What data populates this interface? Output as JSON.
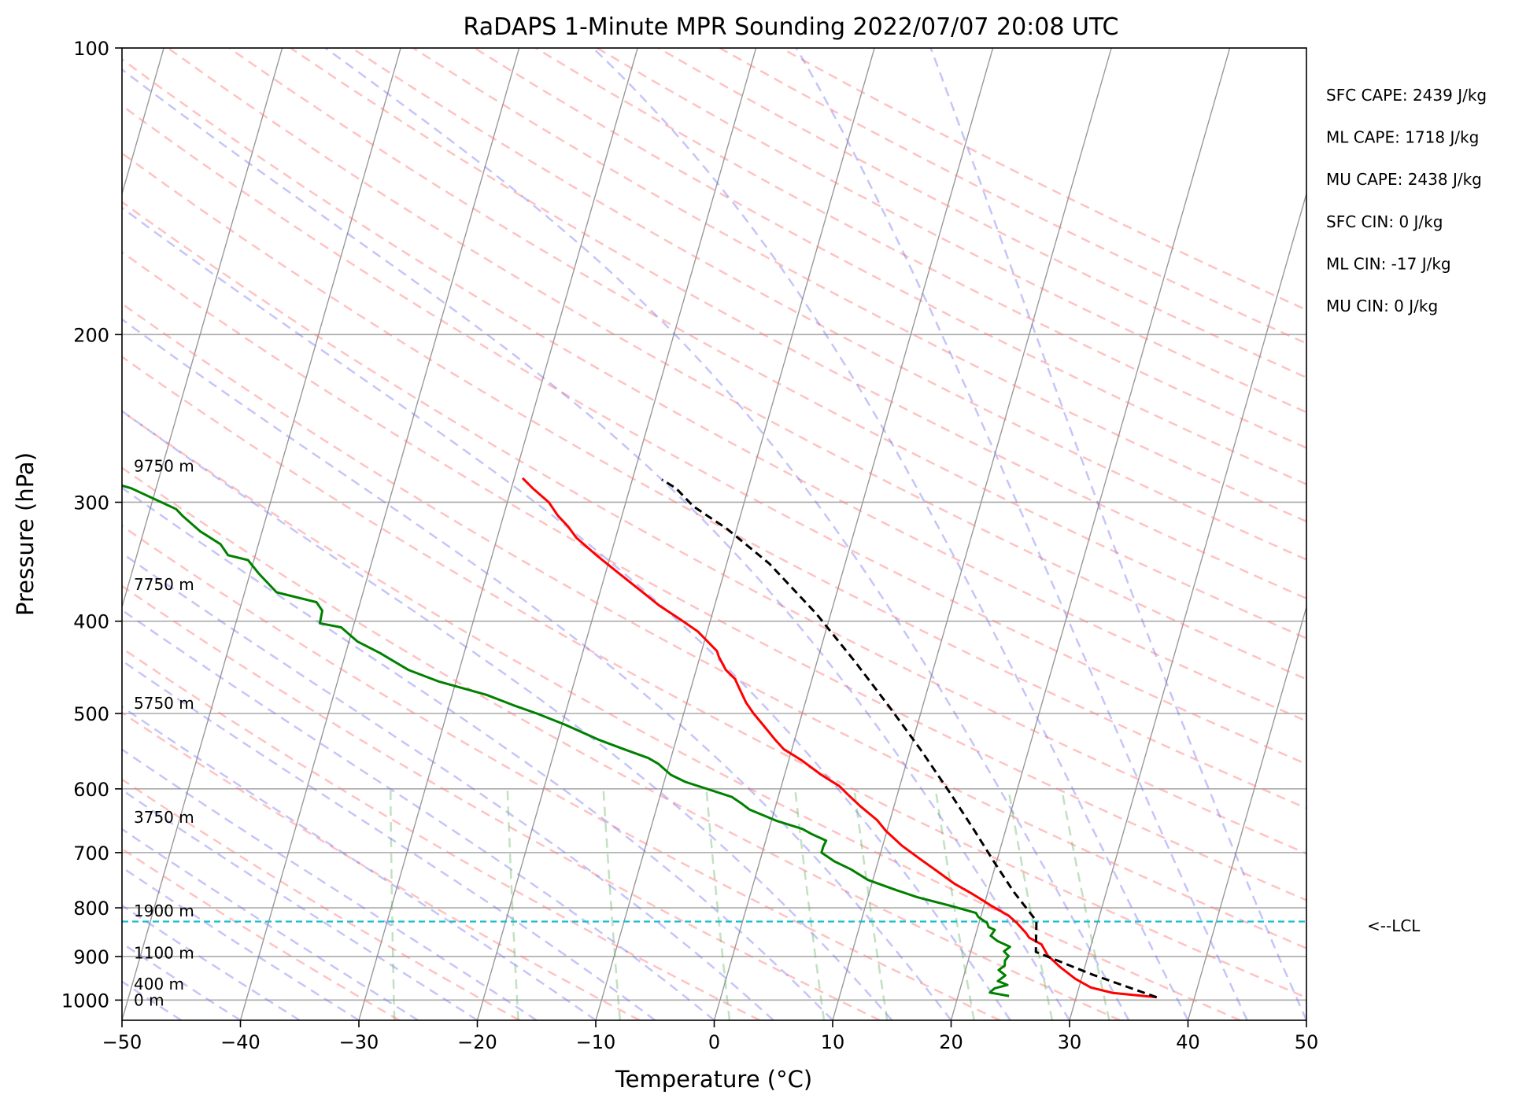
{
  "chart_data": {
    "type": "skew-t",
    "title": "RaDAPS 1-Minute MPR Sounding 2022/07/07 20:08 UTC",
    "xlabel": "Temperature (°C)",
    "ylabel": "Pressure (hPa)",
    "xlim": [
      -50,
      50
    ],
    "ylim": [
      1050,
      100
    ],
    "y_scale": "log",
    "grid": true,
    "x_ticks": [
      "−50",
      "−40",
      "−30",
      "−20",
      "−10",
      "0",
      "10",
      "20",
      "30",
      "40",
      "50"
    ],
    "y_ticks": [
      "100",
      "200",
      "300",
      "400",
      "500",
      "600",
      "700",
      "800",
      "900",
      "1000"
    ],
    "stats": [
      "SFC CAPE: 2439 J/kg",
      "ML CAPE: 1718 J/kg",
      "MU CAPE: 2438 J/kg",
      "SFC CIN: 0 J/kg",
      "ML CIN: -17 J/kg",
      "MU CIN: 0 J/kg"
    ],
    "height_labels": [
      {
        "text": "9750 m",
        "p": 275
      },
      {
        "text": "7750 m",
        "p": 366
      },
      {
        "text": "5750 m",
        "p": 488
      },
      {
        "text": "3750 m",
        "p": 643
      },
      {
        "text": "1900 m",
        "p": 806
      },
      {
        "text": "1100 m",
        "p": 892
      },
      {
        "text": "400 m",
        "p": 962
      },
      {
        "text": "0 m",
        "p": 1000
      }
    ],
    "lcl": {
      "p": 827,
      "label": "<--LCL"
    },
    "series": [
      {
        "color": "#ff0000",
        "points": [
          [
            36.8,
            993
          ],
          [
            33,
            983
          ],
          [
            31,
            970
          ],
          [
            29.5,
            950
          ],
          [
            27.9,
            923
          ],
          [
            26.6,
            898
          ],
          [
            25.8,
            874
          ],
          [
            24.6,
            860
          ],
          [
            24.2,
            850
          ],
          [
            23.2,
            830
          ],
          [
            22.3,
            815
          ],
          [
            20.7,
            797
          ],
          [
            19.8,
            786
          ],
          [
            18.6,
            772
          ],
          [
            17,
            755
          ],
          [
            15.2,
            732
          ],
          [
            13.4,
            710
          ],
          [
            11.6,
            688
          ],
          [
            9.9,
            664
          ],
          [
            8.9,
            647
          ],
          [
            7.1,
            625
          ],
          [
            5.8,
            608
          ],
          [
            4.9,
            596
          ],
          [
            3.1,
            580
          ],
          [
            1.1,
            560
          ],
          [
            -0.7,
            545
          ],
          [
            -1.7,
            532
          ],
          [
            -3.1,
            513
          ],
          [
            -4.1,
            500
          ],
          [
            -5,
            487
          ],
          [
            -6,
            469
          ],
          [
            -6.5,
            460
          ],
          [
            -7.5,
            450
          ],
          [
            -8.4,
            436
          ],
          [
            -8.7,
            430
          ],
          [
            -10.8,
            410
          ],
          [
            -12.6,
            398
          ],
          [
            -14.7,
            385
          ],
          [
            -16.1,
            375
          ],
          [
            -18.9,
            356
          ],
          [
            -21.2,
            341
          ],
          [
            -23.3,
            327
          ],
          [
            -24.3,
            318
          ],
          [
            -25.4,
            310
          ],
          [
            -26.5,
            300
          ],
          [
            -28.2,
            290
          ],
          [
            -29.3,
            283
          ]
        ]
      },
      {
        "color": "#008000",
        "points": [
          [
            24.3,
            990
          ],
          [
            22.6,
            982
          ],
          [
            22.9,
            972
          ],
          [
            23.9,
            964
          ],
          [
            23,
            955
          ],
          [
            23.5,
            942
          ],
          [
            22.8,
            930
          ],
          [
            23.2,
            920
          ],
          [
            23.1,
            909
          ],
          [
            23.3,
            899
          ],
          [
            22.8,
            889
          ],
          [
            23.2,
            879
          ],
          [
            22,
            867
          ],
          [
            21.3,
            856
          ],
          [
            21.5,
            844
          ],
          [
            20.9,
            838
          ],
          [
            20.7,
            830
          ],
          [
            19.8,
            818
          ],
          [
            19.5,
            810
          ],
          [
            17,
            795
          ],
          [
            14.2,
            780
          ],
          [
            12.3,
            767
          ],
          [
            9.6,
            748
          ],
          [
            7.9,
            729
          ],
          [
            6.3,
            715
          ],
          [
            5,
            700
          ],
          [
            5,
            690
          ],
          [
            5.1,
            680
          ],
          [
            3.8,
            670
          ],
          [
            2.8,
            661
          ],
          [
            0.4,
            648
          ],
          [
            -2.1,
            631
          ],
          [
            -2.9,
            622
          ],
          [
            -3.9,
            612
          ],
          [
            -6.4,
            599
          ],
          [
            -8.2,
            590
          ],
          [
            -9.6,
            580
          ],
          [
            -10.9,
            565
          ],
          [
            -11.9,
            557
          ],
          [
            -14.2,
            545
          ],
          [
            -16.5,
            533
          ],
          [
            -19.7,
            514
          ],
          [
            -22.4,
            500
          ],
          [
            -24.6,
            490
          ],
          [
            -27.1,
            478
          ],
          [
            -31.4,
            463
          ],
          [
            -34.3,
            450
          ],
          [
            -37.1,
            432
          ],
          [
            -39.3,
            420
          ],
          [
            -41,
            406
          ],
          [
            -42.9,
            402
          ],
          [
            -43,
            390
          ],
          [
            -43.7,
            382
          ],
          [
            -47.3,
            373
          ],
          [
            -49.2,
            357
          ],
          [
            -50.5,
            345
          ],
          [
            -52.3,
            341
          ],
          [
            -53.2,
            332
          ],
          [
            -55.2,
            322
          ],
          [
            -57.1,
            310
          ],
          [
            -57.8,
            305
          ],
          [
            -62.1,
            290
          ],
          [
            -65.3,
            283
          ]
        ]
      },
      {
        "color": "#000000",
        "dashed": true,
        "points": [
          [
            36.8,
            993
          ],
          [
            30.8,
            940
          ],
          [
            25.5,
            890
          ],
          [
            24.8,
            826
          ],
          [
            22.2,
            770
          ],
          [
            19.8,
            716
          ],
          [
            17.2,
            660
          ],
          [
            14.3,
            604
          ],
          [
            10.9,
            546
          ],
          [
            7.2,
            492
          ],
          [
            3.2,
            441
          ],
          [
            -1.2,
            393
          ],
          [
            -6.4,
            348
          ],
          [
            -10.8,
            320
          ],
          [
            -14.2,
            303
          ],
          [
            -16.1,
            290
          ],
          [
            -17.5,
            284
          ]
        ]
      }
    ]
  }
}
